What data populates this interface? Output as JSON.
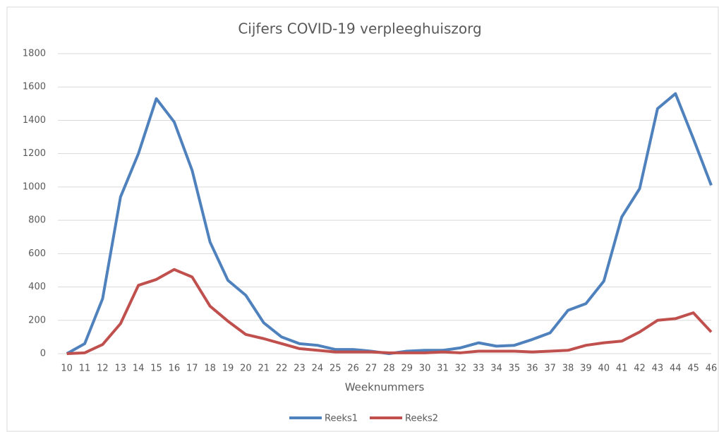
{
  "chart_data": {
    "type": "line",
    "title": "Cijfers COVID-19 verpleeghuiszorg",
    "x_label": "Weeknummers",
    "categories": [
      "10",
      "11",
      "12",
      "13",
      "14",
      "15",
      "16",
      "17",
      "18",
      "19",
      "20",
      "21",
      "22",
      "23",
      "24",
      "25",
      "26",
      "27",
      "28",
      "29",
      "30",
      "31",
      "32",
      "33",
      "34",
      "35",
      "36",
      "37",
      "38",
      "39",
      "40",
      "41",
      "42",
      "43",
      "44",
      "45",
      "46"
    ],
    "series": [
      {
        "name": "Reeks1",
        "color": "#4f81bd",
        "values": [
          0,
          60,
          330,
          940,
          1200,
          1530,
          1390,
          1100,
          670,
          440,
          350,
          185,
          100,
          60,
          50,
          25,
          25,
          15,
          0,
          15,
          20,
          20,
          35,
          65,
          45,
          50,
          85,
          125,
          260,
          300,
          435,
          820,
          990,
          1470,
          1560,
          1290,
          1010
        ]
      },
      {
        "name": "Reeks2",
        "color": "#c0504d",
        "values": [
          0,
          5,
          55,
          180,
          410,
          445,
          505,
          460,
          285,
          195,
          115,
          90,
          60,
          30,
          20,
          10,
          10,
          10,
          5,
          5,
          5,
          10,
          5,
          15,
          15,
          15,
          10,
          15,
          20,
          50,
          65,
          75,
          130,
          200,
          210,
          245,
          130
        ]
      }
    ],
    "ylim": [
      0,
      1800
    ],
    "yticks": [
      0,
      200,
      400,
      600,
      800,
      1000,
      1200,
      1400,
      1600,
      1800
    ],
    "grid": true,
    "legend": "bottom"
  }
}
